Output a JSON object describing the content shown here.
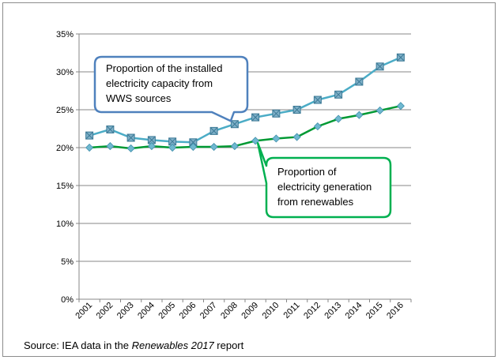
{
  "chart_data": {
    "type": "line",
    "categories": [
      "2001",
      "2002",
      "2003",
      "2004",
      "2005",
      "2006",
      "2007",
      "2008",
      "2009",
      "2010",
      "2011",
      "2012",
      "2013",
      "2014",
      "2015",
      "2016"
    ],
    "ylim": [
      0,
      35
    ],
    "yticks": [
      "0%",
      "5%",
      "10%",
      "15%",
      "20%",
      "25%",
      "30%",
      "35%"
    ],
    "grid": true,
    "series": [
      {
        "name": "Proportion of the installed electricity capacity from WWS sources",
        "color": "#4bacc6",
        "marker": "square-x",
        "values": [
          21.6,
          22.4,
          21.3,
          21.0,
          20.8,
          20.7,
          22.2,
          23.1,
          24.0,
          24.5,
          25.0,
          26.3,
          27.0,
          28.7,
          30.7,
          31.9
        ]
      },
      {
        "name": "Proportion of electricity generation from renewables",
        "color": "#009933",
        "marker": "diamond",
        "values": [
          20.0,
          20.2,
          19.9,
          20.2,
          20.0,
          20.1,
          20.1,
          20.2,
          20.9,
          21.2,
          21.4,
          22.8,
          23.8,
          24.3,
          24.9,
          25.5
        ]
      }
    ],
    "callouts": [
      {
        "lines": [
          "Proportion of the installed",
          "electricity capacity from",
          "WWS sources"
        ],
        "border": "#4f81bd"
      },
      {
        "lines": [
          "Proportion of",
          "electricity generation",
          "from renewables"
        ],
        "border": "#00b050"
      }
    ]
  },
  "source": {
    "prefix": "Source: IEA data in the ",
    "italic": "Renewables 2017",
    "suffix": " report"
  }
}
